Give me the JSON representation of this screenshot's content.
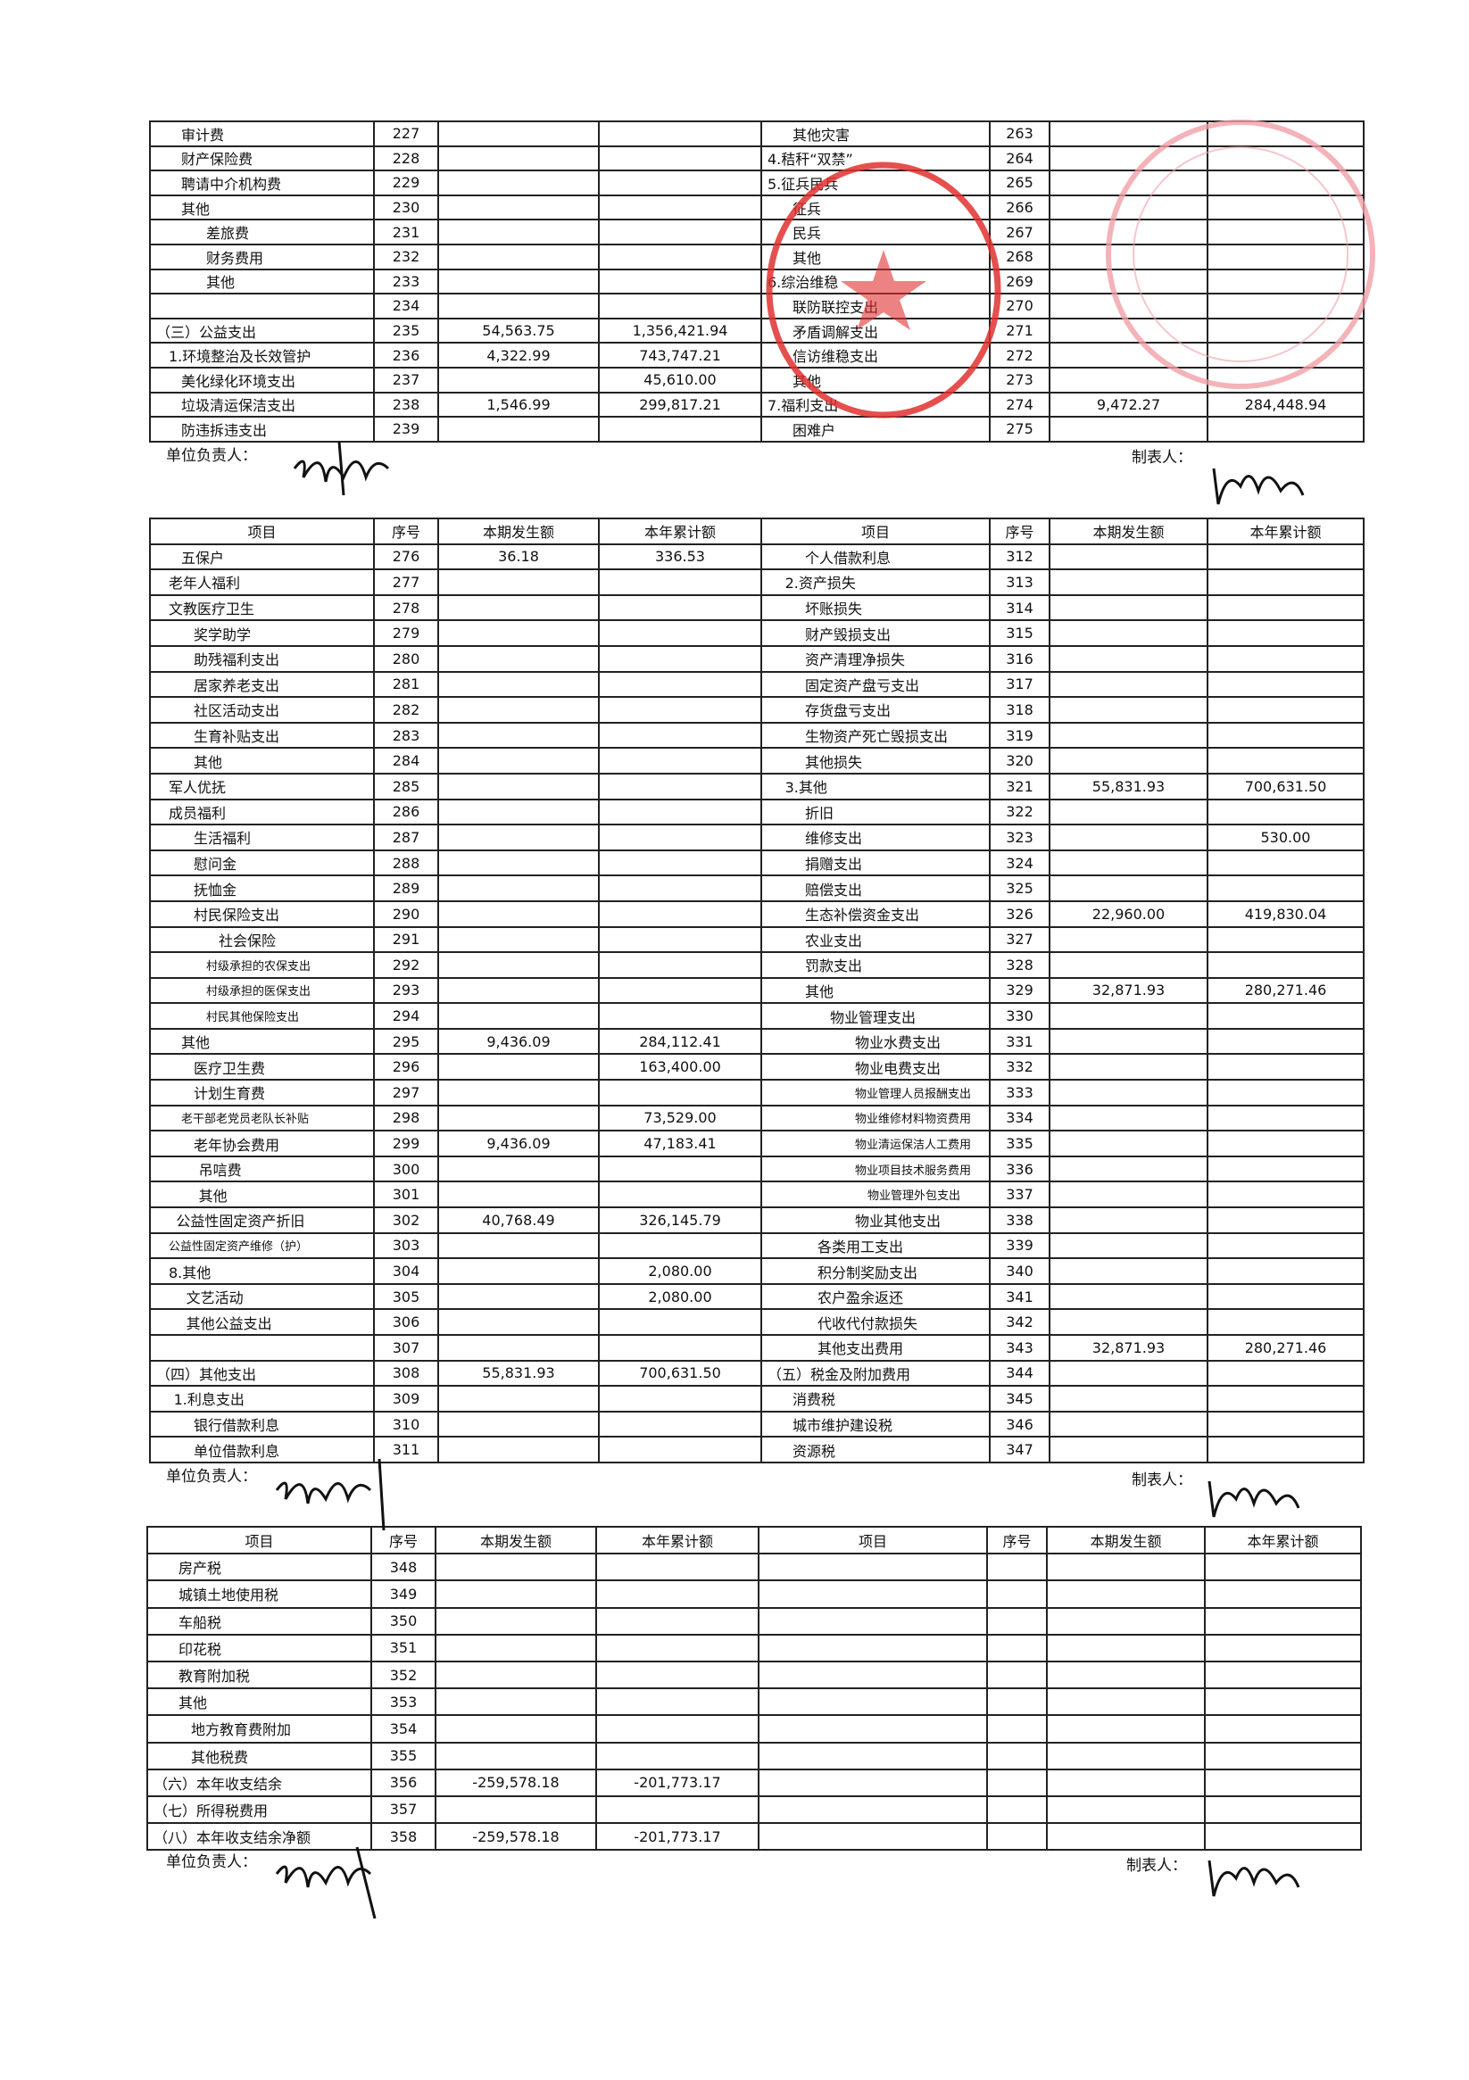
{
  "labels": {
    "unit_head": "单位负责人：",
    "preparer": "制表人："
  },
  "headers": [
    "项目",
    "序号",
    "本期发生额",
    "本年累计额",
    "项目",
    "序号",
    "本期发生额",
    "本年累计额"
  ],
  "stamp_colors": {
    "primary": "#e0312f",
    "faint": "#f0a0a8"
  },
  "table1": {
    "left": [
      [
        "审计费",
        "227",
        "",
        "",
        1
      ],
      [
        "财产保险费",
        "228",
        "",
        "",
        1
      ],
      [
        "聘请中介机构费",
        "229",
        "",
        "",
        1
      ],
      [
        "其他",
        "230",
        "",
        "",
        1
      ],
      [
        "差旅费",
        "231",
        "",
        "",
        2
      ],
      [
        "财务费用",
        "232",
        "",
        "",
        2
      ],
      [
        "其他",
        "233",
        "",
        "",
        2
      ],
      [
        "",
        "234",
        "",
        "",
        0
      ],
      [
        "（三）公益支出",
        "235",
        "54,563.75",
        "1,356,421.94",
        0
      ],
      [
        "1.环境整治及长效管护",
        "236",
        "4,322.99",
        "743,747.21",
        0.5
      ],
      [
        "美化绿化环境支出",
        "237",
        "",
        "45,610.00",
        1
      ],
      [
        "垃圾清运保洁支出",
        "238",
        "1,546.99",
        "299,817.21",
        1
      ],
      [
        "防违拆违支出",
        "239",
        "",
        "",
        1
      ]
    ],
    "right": [
      [
        "其他灾害",
        "263",
        "",
        "",
        1
      ],
      [
        "4.秸秆“双禁”",
        "264",
        "",
        "",
        0
      ],
      [
        "5.征兵民兵",
        "265",
        "",
        "",
        0
      ],
      [
        "征兵",
        "266",
        "",
        "",
        1
      ],
      [
        "民兵",
        "267",
        "",
        "",
        1
      ],
      [
        "其他",
        "268",
        "",
        "",
        1
      ],
      [
        "6.综治维稳",
        "269",
        "",
        "",
        0
      ],
      [
        "联防联控支出",
        "270",
        "",
        "",
        1
      ],
      [
        "矛盾调解支出",
        "271",
        "",
        "",
        1
      ],
      [
        "信访维稳支出",
        "272",
        "",
        "",
        1
      ],
      [
        "其他",
        "273",
        "",
        "",
        1
      ],
      [
        "7.福利支出",
        "274",
        "9,472.27",
        "284,448.94",
        0
      ],
      [
        "困难户",
        "275",
        "",
        "",
        1
      ]
    ]
  },
  "table2": {
    "left": [
      [
        "五保户",
        "276",
        "36.18",
        "336.53",
        1
      ],
      [
        "老年人福利",
        "277",
        "",
        "",
        0.5
      ],
      [
        "文教医疗卫生",
        "278",
        "",
        "",
        0.5
      ],
      [
        "奖学助学",
        "279",
        "",
        "",
        1.5
      ],
      [
        "助残福利支出",
        "280",
        "",
        "",
        1.5
      ],
      [
        "居家养老支出",
        "281",
        "",
        "",
        1.5
      ],
      [
        "社区活动支出",
        "282",
        "",
        "",
        1.5
      ],
      [
        "生育补贴支出",
        "283",
        "",
        "",
        1.5
      ],
      [
        "其他",
        "284",
        "",
        "",
        1.5
      ],
      [
        "军人优抚",
        "285",
        "",
        "",
        0.5
      ],
      [
        "成员福利",
        "286",
        "",
        "",
        0.5
      ],
      [
        "生活福利",
        "287",
        "",
        "",
        1.5
      ],
      [
        "慰问金",
        "288",
        "",
        "",
        1.5
      ],
      [
        "抚恤金",
        "289",
        "",
        "",
        1.5
      ],
      [
        "村民保险支出",
        "290",
        "",
        "",
        1.5
      ],
      [
        "社会保险",
        "291",
        "",
        "",
        2.5
      ],
      [
        "村级承担的农保支出",
        "292",
        "",
        "",
        2,
        "s"
      ],
      [
        "村级承担的医保支出",
        "293",
        "",
        "",
        2,
        "s"
      ],
      [
        "村民其他保险支出",
        "294",
        "",
        "",
        2,
        "s"
      ],
      [
        "其他",
        "295",
        "9,436.09",
        "284,112.41",
        1
      ],
      [
        "医疗卫生费",
        "296",
        "",
        "163,400.00",
        1.5
      ],
      [
        "计划生育费",
        "297",
        "",
        "",
        1.5
      ],
      [
        "老干部老党员老队长补贴",
        "298",
        "",
        "73,529.00",
        1,
        "s"
      ],
      [
        "老年协会费用",
        "299",
        "9,436.09",
        "47,183.41",
        1.5
      ],
      [
        "吊唁费",
        "300",
        "",
        "",
        1.7
      ],
      [
        "其他",
        "301",
        "",
        "",
        1.7
      ],
      [
        "公益性固定资产折旧",
        "302",
        "40,768.49",
        "326,145.79",
        0.8
      ],
      [
        "公益性固定资产维修（护）",
        "303",
        "",
        "",
        0.5,
        "s"
      ],
      [
        "8.其他",
        "304",
        "",
        "2,080.00",
        0.5
      ],
      [
        "文艺活动",
        "305",
        "",
        "2,080.00",
        1.2
      ],
      [
        "其他公益支出",
        "306",
        "",
        "",
        1.2
      ],
      [
        "",
        "307",
        "",
        "",
        0
      ],
      [
        "（四）其他支出",
        "308",
        "55,831.93",
        "700,631.50",
        0
      ],
      [
        "1.利息支出",
        "309",
        "",
        "",
        0.7
      ],
      [
        "银行借款利息",
        "310",
        "",
        "",
        1.5
      ],
      [
        "单位借款利息",
        "311",
        "",
        "",
        1.5
      ]
    ],
    "right": [
      [
        "个人借款利息",
        "312",
        "",
        "",
        1.5
      ],
      [
        "2.资产损失",
        "313",
        "",
        "",
        0.7
      ],
      [
        "坏账损失",
        "314",
        "",
        "",
        1.5
      ],
      [
        "财产毁损支出",
        "315",
        "",
        "",
        1.5
      ],
      [
        "资产清理净损失",
        "316",
        "",
        "",
        1.5
      ],
      [
        "固定资产盘亏支出",
        "317",
        "",
        "",
        1.5
      ],
      [
        "存货盘亏支出",
        "318",
        "",
        "",
        1.5
      ],
      [
        "生物资产死亡毁损支出",
        "319",
        "",
        "",
        1.5
      ],
      [
        "其他损失",
        "320",
        "",
        "",
        1.5
      ],
      [
        "3.其他",
        "321",
        "55,831.93",
        "700,631.50",
        0.7
      ],
      [
        "折旧",
        "322",
        "",
        "",
        1.5
      ],
      [
        "维修支出",
        "323",
        "",
        "530.00",
        1.5
      ],
      [
        "捐赠支出",
        "324",
        "",
        "",
        1.5
      ],
      [
        "赔偿支出",
        "325",
        "",
        "",
        1.5
      ],
      [
        "生态补偿资金支出",
        "326",
        "22,960.00",
        "419,830.04",
        1.5
      ],
      [
        "农业支出",
        "327",
        "",
        "",
        1.5
      ],
      [
        "罚款支出",
        "328",
        "",
        "",
        1.5
      ],
      [
        "其他",
        "329",
        "32,871.93",
        "280,271.46",
        1.5
      ],
      [
        "物业管理支出",
        "330",
        "",
        "",
        2.5
      ],
      [
        "物业水费支出",
        "331",
        "",
        "",
        3.5
      ],
      [
        "物业电费支出",
        "332",
        "",
        "",
        3.5
      ],
      [
        "物业管理人员报酬支出",
        "333",
        "",
        "",
        3.5,
        "s"
      ],
      [
        "物业维修材料物资费用",
        "334",
        "",
        "",
        3.5,
        "s"
      ],
      [
        "物业清运保洁人工费用",
        "335",
        "",
        "",
        3.5,
        "s"
      ],
      [
        "物业项目技术服务费用",
        "336",
        "",
        "",
        3.5,
        "s"
      ],
      [
        "物业管理外包支出",
        "337",
        "",
        "",
        4,
        "s"
      ],
      [
        "物业其他支出",
        "338",
        "",
        "",
        3.5
      ],
      [
        "各类用工支出",
        "339",
        "",
        "",
        2
      ],
      [
        "积分制奖励支出",
        "340",
        "",
        "",
        2
      ],
      [
        "农户盈余返还",
        "341",
        "",
        "",
        2
      ],
      [
        "代收代付款损失",
        "342",
        "",
        "",
        2
      ],
      [
        "其他支出费用",
        "343",
        "32,871.93",
        "280,271.46",
        2
      ],
      [
        "（五）税金及附加费用",
        "344",
        "",
        "",
        0
      ],
      [
        "消费税",
        "345",
        "",
        "",
        1
      ],
      [
        "城市维护建设税",
        "346",
        "",
        "",
        1
      ],
      [
        "资源税",
        "347",
        "",
        "",
        1
      ]
    ]
  },
  "table3": {
    "left": [
      [
        "房产税",
        "348",
        "",
        "",
        1
      ],
      [
        "城镇土地使用税",
        "349",
        "",
        "",
        1
      ],
      [
        "车船税",
        "350",
        "",
        "",
        1
      ],
      [
        "印花税",
        "351",
        "",
        "",
        1
      ],
      [
        "教育附加税",
        "352",
        "",
        "",
        1
      ],
      [
        "其他",
        "353",
        "",
        "",
        1
      ],
      [
        "地方教育费附加",
        "354",
        "",
        "",
        1.5
      ],
      [
        "其他税费",
        "355",
        "",
        "",
        1.5
      ],
      [
        "（六）本年收支结余",
        "356",
        "-259,578.18",
        "-201,773.17",
        0
      ],
      [
        "（七）所得税费用",
        "357",
        "",
        "",
        0
      ],
      [
        "（八）本年收支结余净额",
        "358",
        "-259,578.18",
        "-201,773.17",
        0
      ]
    ],
    "right": []
  }
}
